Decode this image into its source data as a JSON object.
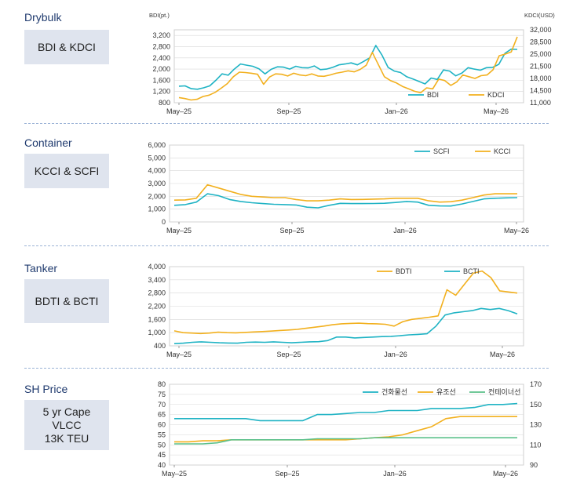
{
  "sections": [
    {
      "title": "Drybulk",
      "box": "BDI & KDCI"
    },
    {
      "title": "Container",
      "box": "KCCI & SCFI"
    },
    {
      "title": "Tanker",
      "box": "BDTI & BCTI"
    },
    {
      "title": "SH Price",
      "box": "5 yr Cape\nVLCC\n13K TEU"
    }
  ],
  "colors": {
    "teal": "#1fb3c4",
    "orange": "#f2b01e",
    "green": "#5bc08a",
    "grid": "#d8d8d8"
  },
  "chart_data": [
    {
      "type": "line",
      "title": "",
      "xlabel": "",
      "ylabel": "BDI(pt.)",
      "y2label": "KDCI(USD)",
      "x_ticks": [
        "May–25",
        "Sep–25",
        "Jan–26",
        "May–26"
      ],
      "ylim": [
        800,
        3400
      ],
      "yticks": [
        800,
        1200,
        1600,
        2000,
        2400,
        2800,
        3200
      ],
      "y2lim": [
        11000,
        32000
      ],
      "y2ticks": [
        11000,
        14500,
        18000,
        21500,
        25000,
        28500,
        32000
      ],
      "legend_position": "bottom-right",
      "series": [
        {
          "name": "BDI",
          "axis": "left",
          "color": "teal",
          "values": [
            1390,
            1400,
            1300,
            1280,
            1330,
            1400,
            1600,
            1830,
            1780,
            2000,
            2180,
            2140,
            2100,
            2010,
            1830,
            1990,
            2080,
            2070,
            2000,
            2100,
            2050,
            2040,
            2110,
            1980,
            2000,
            2060,
            2150,
            2180,
            2220,
            2150,
            2270,
            2400,
            2840,
            2500,
            2060,
            1930,
            1880,
            1730,
            1650,
            1560,
            1470,
            1680,
            1630,
            1970,
            1930,
            1760,
            1860,
            2050,
            2000,
            1960,
            2050,
            2060,
            2170,
            2560,
            2710,
            2700
          ]
        },
        {
          "name": "KDCI",
          "axis": "right",
          "color": "orange",
          "values": [
            12500,
            12200,
            11800,
            12000,
            12800,
            13200,
            14000,
            15200,
            16500,
            18500,
            19800,
            19700,
            19500,
            19200,
            16300,
            18400,
            19300,
            19200,
            18700,
            19500,
            19000,
            18800,
            19300,
            18700,
            18600,
            19000,
            19500,
            19800,
            20200,
            19900,
            20600,
            21800,
            25500,
            22000,
            18500,
            17400,
            16700,
            15700,
            15000,
            14300,
            13900,
            15300,
            15000,
            17800,
            17400,
            16000,
            17000,
            19000,
            18500,
            18000,
            18800,
            19000,
            20500,
            24500,
            25000,
            25600,
            30000
          ]
        }
      ]
    },
    {
      "type": "line",
      "title": "",
      "xlabel": "",
      "ylabel": "",
      "x_ticks": [
        "May–25",
        "Sep–25",
        "Jan–26",
        "May–26"
      ],
      "ylim": [
        0,
        6000
      ],
      "yticks": [
        0,
        1000,
        2000,
        3000,
        4000,
        5000,
        6000
      ],
      "legend_position": "top-right",
      "series": [
        {
          "name": "SCFI",
          "color": "teal",
          "values": [
            1300,
            1350,
            1550,
            2200,
            2050,
            1750,
            1600,
            1500,
            1430,
            1380,
            1350,
            1320,
            1150,
            1100,
            1300,
            1450,
            1430,
            1430,
            1440,
            1460,
            1520,
            1600,
            1550,
            1300,
            1250,
            1240,
            1400,
            1600,
            1800,
            1850,
            1880,
            1900
          ]
        },
        {
          "name": "KCCI",
          "color": "orange",
          "values": [
            1700,
            1720,
            1850,
            2900,
            2650,
            2400,
            2150,
            2000,
            1950,
            1900,
            1900,
            1750,
            1650,
            1650,
            1700,
            1800,
            1750,
            1760,
            1780,
            1800,
            1850,
            1850,
            1850,
            1650,
            1550,
            1580,
            1700,
            1900,
            2100,
            2200,
            2200,
            2200
          ]
        }
      ]
    },
    {
      "type": "line",
      "title": "",
      "xlabel": "",
      "ylabel": "",
      "x_ticks": [
        "May–25",
        "Sep–25",
        "Jan–26",
        "May–26"
      ],
      "ylim": [
        400,
        4000
      ],
      "yticks": [
        400,
        1000,
        1600,
        2200,
        2800,
        3400,
        4000
      ],
      "legend_position": "top-right",
      "series": [
        {
          "name": "BDTI",
          "color": "orange",
          "values": [
            1080,
            1000,
            980,
            960,
            980,
            1020,
            1000,
            990,
            1010,
            1030,
            1050,
            1070,
            1100,
            1120,
            1150,
            1200,
            1250,
            1300,
            1360,
            1400,
            1420,
            1430,
            1410,
            1400,
            1380,
            1300,
            1500,
            1600,
            1650,
            1700,
            1760,
            2950,
            2700,
            3200,
            3700,
            3800,
            3500,
            2900,
            2850,
            2800
          ]
        },
        {
          "name": "BCTI",
          "color": "teal",
          "values": [
            500,
            520,
            560,
            580,
            560,
            540,
            530,
            520,
            560,
            570,
            560,
            580,
            560,
            540,
            560,
            580,
            590,
            640,
            800,
            800,
            760,
            780,
            800,
            820,
            830,
            860,
            900,
            920,
            950,
            1300,
            1800,
            1900,
            1950,
            2000,
            2100,
            2050,
            2100,
            2000,
            1850
          ]
        }
      ]
    },
    {
      "type": "line",
      "title": "",
      "xlabel": "",
      "ylabel": "",
      "x_ticks": [
        "May–25",
        "Sep–25",
        "Jan–26",
        "May–26"
      ],
      "ylim": [
        40,
        80
      ],
      "yticks": [
        40,
        45,
        50,
        55,
        60,
        65,
        70,
        75,
        80
      ],
      "y2lim": [
        90,
        170
      ],
      "y2ticks": [
        90,
        110,
        130,
        150,
        170
      ],
      "legend_position": "top-right",
      "series": [
        {
          "name": "건화물선",
          "axis": "left",
          "color": "teal",
          "values": [
            63,
            63,
            63,
            63,
            63,
            63,
            62,
            62,
            62,
            62,
            65,
            65,
            65.5,
            66,
            66,
            67,
            67,
            67,
            68,
            68,
            68,
            68.5,
            70,
            70,
            70.5
          ]
        },
        {
          "name": "유조선",
          "axis": "right",
          "color": "orange",
          "values": [
            113,
            113,
            114,
            114,
            115,
            115,
            115,
            115,
            115,
            115,
            115,
            115,
            115,
            116,
            117,
            118,
            120,
            124,
            128,
            136,
            138,
            138,
            138,
            138,
            138
          ]
        },
        {
          "name": "컨테이너선",
          "axis": "right",
          "color": "green",
          "values": [
            111,
            111,
            111,
            112,
            115,
            115,
            115,
            115,
            115,
            115,
            116,
            116,
            116,
            116,
            117,
            117,
            117,
            117,
            117,
            117,
            117,
            117,
            117,
            117,
            117
          ]
        }
      ]
    }
  ]
}
